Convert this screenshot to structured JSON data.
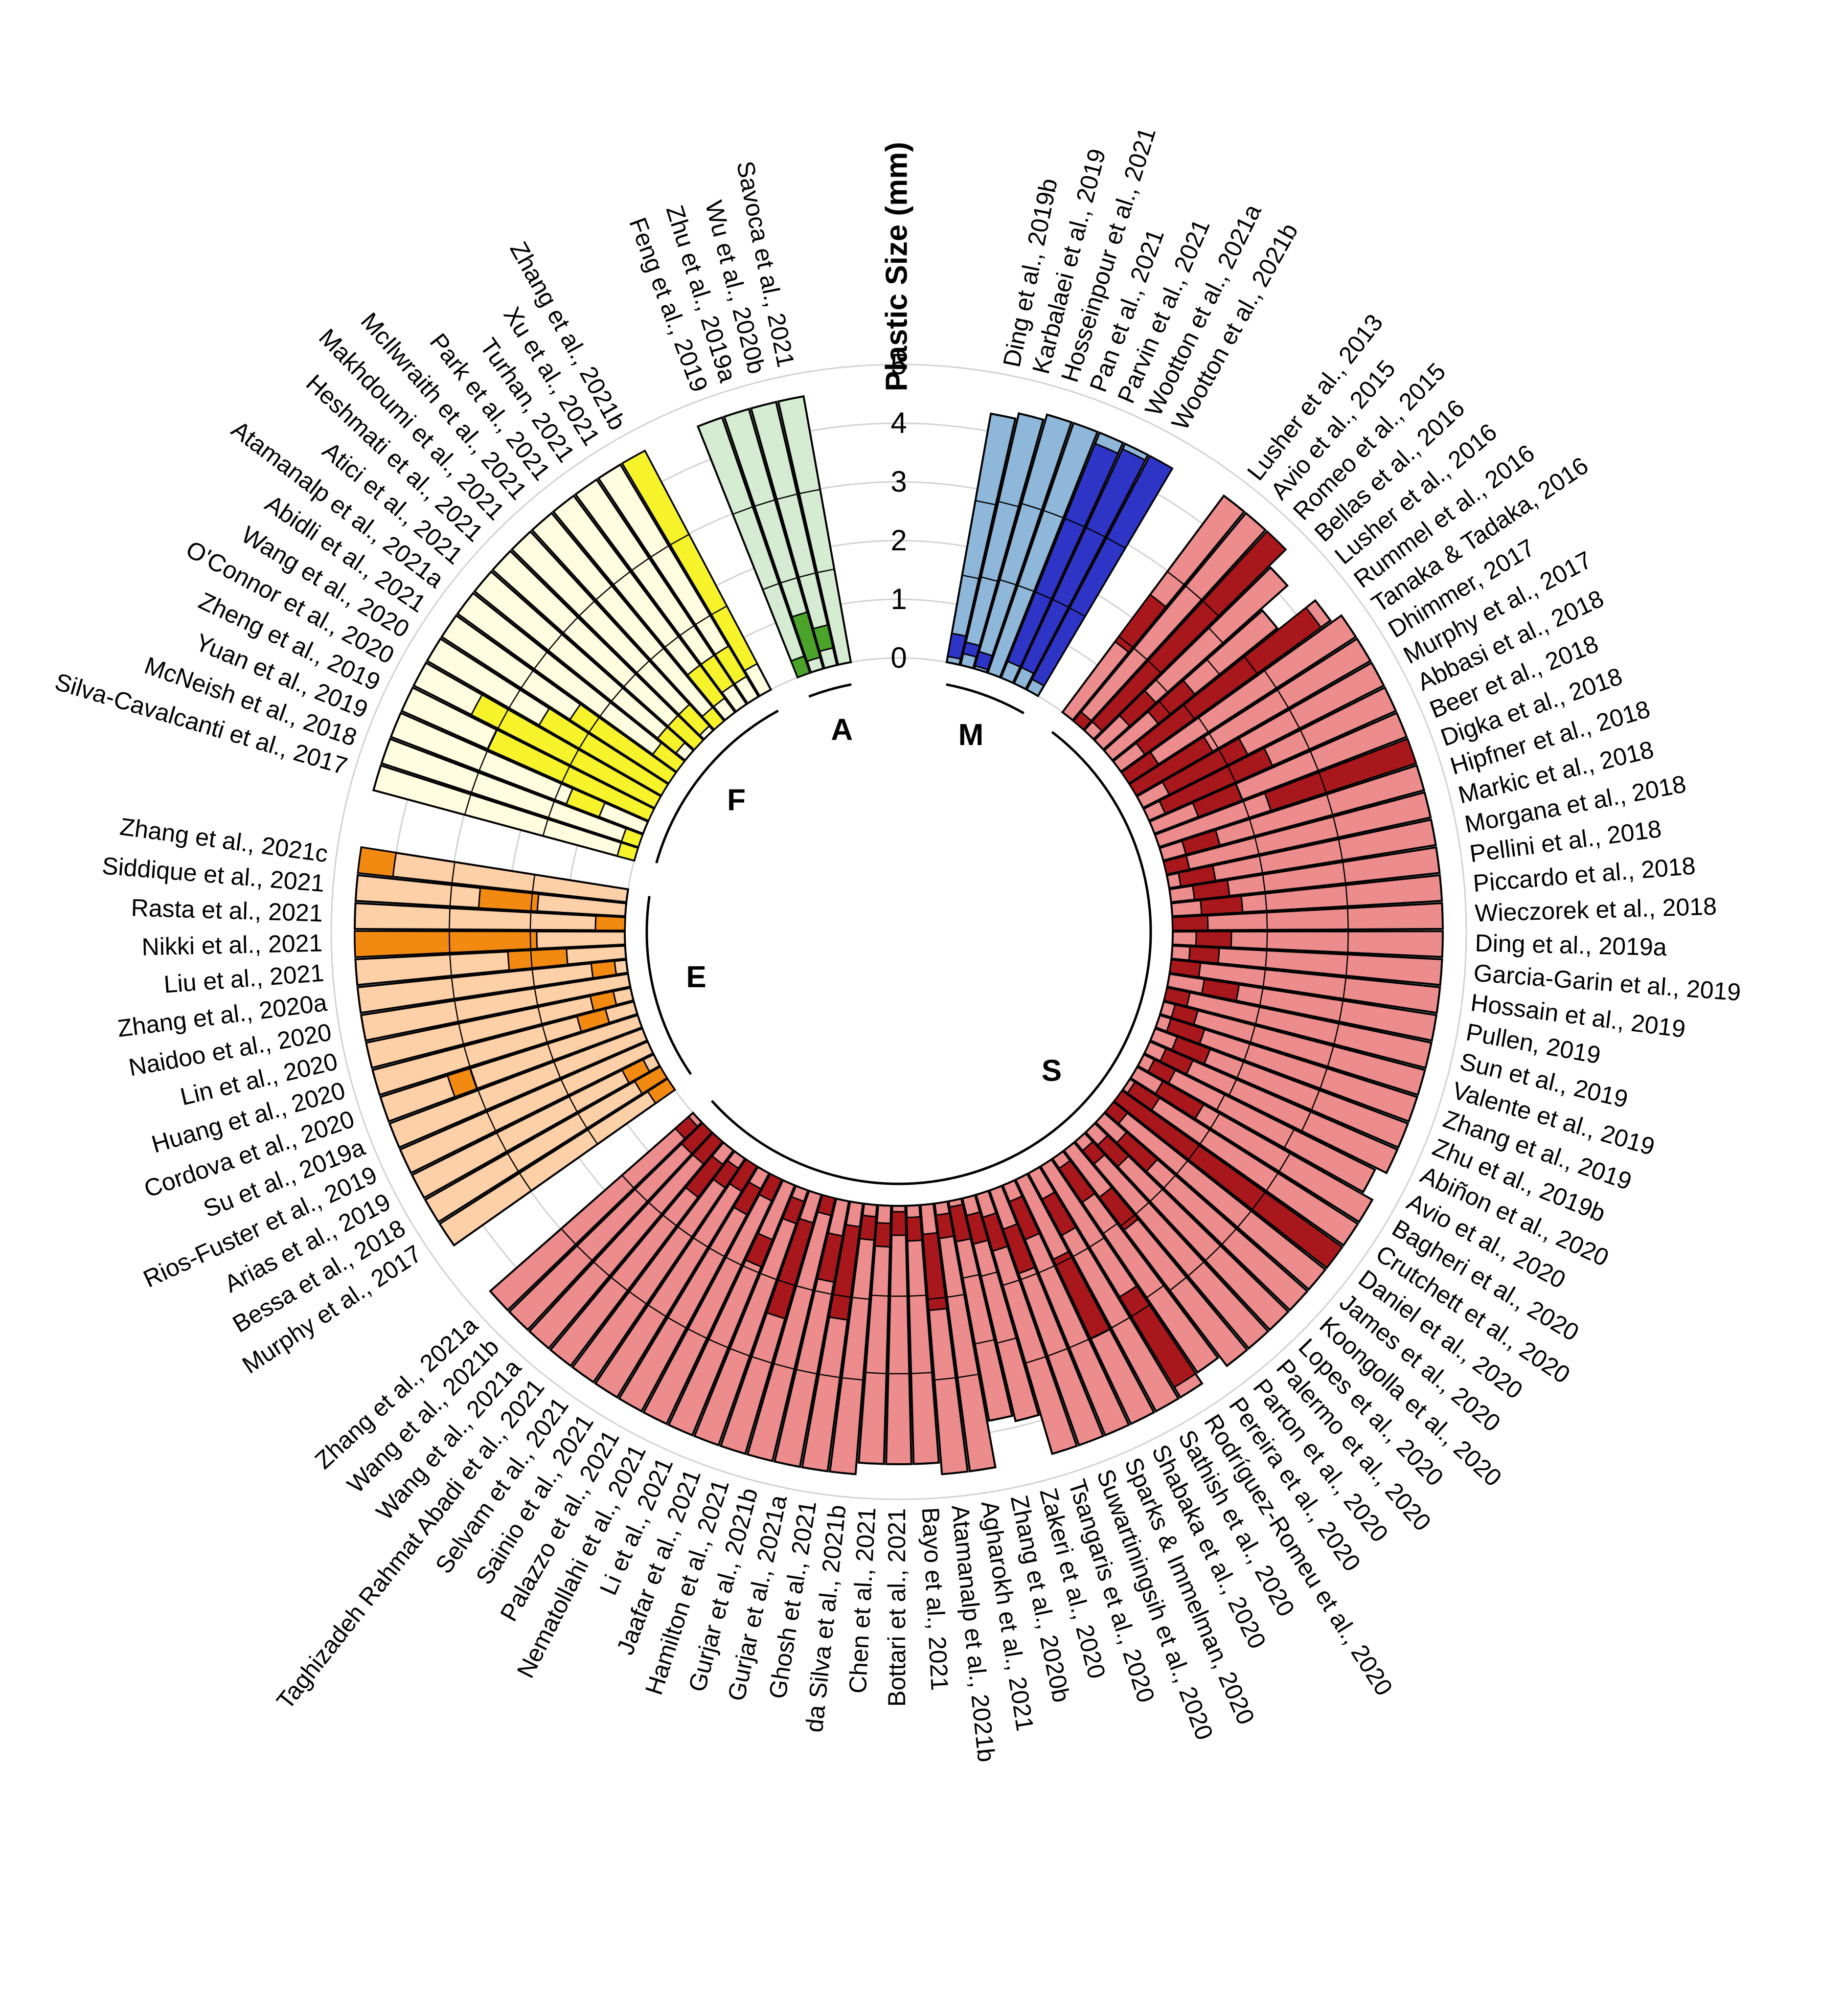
{
  "chart_data": {
    "type": "circular-stacked-bar",
    "axis_title": "Plastic Size (mm)",
    "radial_ticks": [
      "0",
      "1",
      "2",
      "3",
      "4",
      "5"
    ],
    "ylim": [
      0,
      5
    ],
    "groups": [
      {
        "key": "M",
        "label": "M",
        "color_light": "#8fb7d9",
        "color_dark": "#2e34c6",
        "studies": [
          "Ding et al., 2019b",
          "Karbalaei et al., 2019",
          "Hosseinpour et al., 2021",
          "Pan et al., 2021",
          "Parvin et al., 2021",
          "Wootton et al., 2021a",
          "Wootton et al., 2021b"
        ],
        "lengths": [
          4.3,
          4.4,
          4.5,
          4.5,
          4.5,
          4.5,
          4.5
        ],
        "dark": [
          [
            0.1,
            0.5
          ],
          [
            0.2,
            0.4
          ],
          [
            0.05,
            0.3
          ],
          [
            0,
            0
          ],
          [
            0.3,
            4.3
          ],
          [
            0.3,
            4.4
          ],
          [
            0.2,
            4.5
          ]
        ]
      },
      {
        "key": "S",
        "label": "S",
        "color_light": "#ec8c8c",
        "color_dark": "#a8171b",
        "studies": [
          "Lusher et al., 2013",
          "Avio et al., 2015",
          "Romeo et al., 2015",
          "Bellas et al., 2016",
          "Lusher et al., 2016",
          "Rummel et al., 2016",
          "Tanaka & Tadaka, 2016",
          "Dhimmer, 2017",
          "Murphy et al., 2017",
          "Abbasi et al., 2018",
          "Beer et al., 2018",
          "Digka et al., 2018",
          "Hipfner et al., 2018",
          "Markic et al., 2018",
          "Morgana et al., 2018",
          "Pellini et al., 2018",
          "Piccardo et al., 2018",
          "Wieczorek et al., 2018",
          "Ding et al., 2019a",
          "Garcia-Garin et al., 2019",
          "Hossain et al., 2019",
          "Pullen, 2019",
          "Sun et al., 2019",
          "Valente et al., 2019",
          "Zhang et al., 2019",
          "Zhu et al., 2019b",
          "Abiñon et al., 2020",
          "Avio et al., 2020",
          "Bagheri et al., 2020",
          "Crutchett et al., 2020",
          "Daniel et al., 2020",
          "James et al., 2020",
          "Koongolla et al., 2020",
          "Lopes et al., 2020",
          "Palermo et al., 2020",
          "Parton et al., 2020",
          "Pereira et al., 2020",
          "Rodríguez-Romeu et al., 2020",
          "Sathish et al., 2020",
          "Shabaka et al., 2020",
          "Sparks & Immelman, 2020",
          "Suwartiningsih et al., 2020",
          "Tsangaris et al., 2020",
          "Zakeri et al., 2020",
          "Zhang et al., 2020b",
          "Agharokh et al., 2021",
          "Atamanalp et al., 2021b",
          "Bayo et al., 2021",
          "Bottari et al., 2021",
          "Chen et al., 2021",
          "da Silva et al., 2021b",
          "Ghosh et al., 2021",
          "Gurjar et al., 2021a",
          "Gurjar et al., 2021b",
          "Hamilton et al., 2021",
          "Jaafar et al., 2021",
          "Li et al., 2021",
          "Nematollahi et al., 2021",
          "Palazzo et al., 2021",
          "Sainio et al., 2021",
          "Selvam et al., 2021",
          "Taghizadeh Rahmat Abadi et al., 2021",
          "Wang et al., 2021a",
          "Wang et al., 2021b",
          "Zhang et al., 2021a"
        ],
        "lengths": [
          4.6,
          4.6,
          4.6,
          4.2,
          3.6,
          4.4,
          4.6,
          4.6,
          4.6,
          4.6,
          4.6,
          4.6,
          4.6,
          4.6,
          4.6,
          4.6,
          4.6,
          4.6,
          4.6,
          4.6,
          4.6,
          4.6,
          4.6,
          4.6,
          4.6,
          4.6,
          4.6,
          4.4,
          4.6,
          4.6,
          4.6,
          4.6,
          4.6,
          4.6,
          4.6,
          4.6,
          4.4,
          4.6,
          4.6,
          4.6,
          4.6,
          4.6,
          4.6,
          3.9,
          3.8,
          4.6,
          4.6,
          4.4,
          4.4,
          4.4,
          4.6,
          4.6,
          4.6,
          4.6,
          4.6,
          4.6,
          4.6,
          4.6,
          4.6,
          4.6,
          4.6,
          4.6,
          4.6,
          4.6,
          4.6
        ],
        "dark": [
          [
            1.5,
            2.5
          ],
          [
            0,
            0.2
          ],
          [
            0.2,
            4.6
          ],
          [
            0.6,
            1.2
          ],
          [
            1.0,
            1.8
          ],
          [
            0.5,
            4.2
          ],
          [
            0,
            0.6
          ],
          [
            0,
            1.5
          ],
          [
            0.5,
            2.0
          ],
          [
            0.3,
            2.3
          ],
          [
            0.8,
            1.6
          ],
          [
            2.0,
            4.6
          ],
          [
            0.4,
            1.0
          ],
          [
            0,
            0.4
          ],
          [
            0.2,
            0.8
          ],
          [
            0.4,
            1.0
          ],
          [
            0.5,
            1.2
          ],
          [
            0,
            0.6
          ],
          [
            0.4,
            1.0
          ],
          [
            0.3,
            0.8
          ],
          [
            0,
            0.5
          ],
          [
            0.6,
            1.2
          ],
          [
            0,
            0.4
          ],
          [
            0.2,
            0.6
          ],
          [
            0.2,
            0.8
          ],
          [
            0.4,
            1.0
          ],
          [
            0.3,
            0.8
          ],
          [
            0.2,
            0.6
          ],
          [
            0.5,
            1.3
          ],
          [
            0.1,
            0.6
          ],
          [
            0,
            4.6
          ],
          [
            0,
            0.3
          ],
          [
            0.5,
            1.2
          ],
          [
            0.3,
            0.8
          ],
          [
            0.2,
            0.5
          ],
          [
            1.0,
            1.7
          ],
          [
            0.2,
            0.9
          ],
          [
            2.6,
            4.4
          ],
          [
            0.5,
            1.2
          ],
          [
            1.5,
            3.0
          ],
          [
            0.3,
            1.0
          ],
          [
            0.7,
            1.5
          ],
          [
            0.4,
            1.0
          ],
          [
            0.3,
            0.8
          ],
          [
            0.1,
            0.7
          ],
          [
            0.2,
            0.6
          ],
          [
            0.5,
            1.8
          ],
          [
            0.2,
            0.6
          ],
          [
            0.1,
            0.5
          ],
          [
            0.3,
            0.7
          ],
          [
            0.2,
            0.6
          ],
          [
            0.4,
            2.0
          ],
          [
            0.6,
            1.4
          ],
          [
            0,
            0.3
          ],
          [
            0.5,
            2.2
          ],
          [
            0.2,
            0.6
          ],
          [
            1.0,
            1.5
          ],
          [
            0,
            0.4
          ],
          [
            0.3,
            0.8
          ],
          [
            0,
            0.5
          ],
          [
            0.2,
            0.6
          ],
          [
            0.3,
            1.0
          ],
          [
            0,
            0.5
          ],
          [
            0,
            0.5
          ],
          [
            0.1,
            0.4
          ]
        ]
      },
      {
        "key": "E",
        "label": "E",
        "color_light": "#fdd0a8",
        "color_dark": "#f28a12",
        "studies": [
          "Murphy et al., 2017",
          "Bessa et al., 2018",
          "Arias et al., 2019",
          "Rios-Fuster et al., 2019",
          "Su et al., 2019a",
          "Cordova et al., 2020",
          "Huang et al., 2020",
          "Lin et al., 2020",
          "Naidoo et al., 2020",
          "Zhang et al., 2020a",
          "Liu et al., 2021",
          "Nikki et al., 2021",
          "Rasta et al., 2021",
          "Siddique et al., 2021",
          "Zhang et al., 2021c"
        ],
        "lengths": [
          4.6,
          4.6,
          4.6,
          4.6,
          4.6,
          4.6,
          4.6,
          4.6,
          4.6,
          4.6,
          4.6,
          4.6,
          4.6,
          4.6,
          4.6
        ],
        "dark": [
          [
            0,
            0.4
          ],
          [
            0,
            0.5
          ],
          [
            0.2,
            0.6
          ],
          [
            0,
            0
          ],
          [
            0,
            0
          ],
          [
            3.0,
            3.4
          ],
          [
            0.5,
            1.0
          ],
          [
            0.3,
            0.7
          ],
          [
            0,
            0
          ],
          [
            0.2,
            0.6
          ],
          [
            1.0,
            2.0
          ],
          [
            1.5,
            4.6
          ],
          [
            0,
            0.5
          ],
          [
            1.5,
            2.5
          ],
          [
            4.0,
            4.6
          ]
        ]
      },
      {
        "key": "F",
        "label": "F",
        "color_light": "#fffde0",
        "color_dark": "#f7f32a",
        "studies": [
          "Silva-Cavalcanti et al., 2017",
          "McNeish et al., 2018",
          "Yuan et al., 2019",
          "Zheng et al., 2019",
          "O'Connor et al., 2020",
          "Wang et al., 2020",
          "Abidli et al., 2021",
          "Atamanalp et al., 2021a",
          "Atici et al., 2021",
          "Heshmati et al., 2021",
          "Makhdoumi et al., 2021",
          "McIlwraith et al., 2021",
          "Park et al., 2021",
          "Turhan, 2021",
          "Xu et al., 2021",
          "Zhang et al., 2021b"
        ],
        "lengths": [
          4.6,
          4.6,
          4.6,
          4.6,
          4.6,
          4.6,
          4.6,
          4.6,
          4.6,
          4.6,
          4.6,
          4.6,
          4.6,
          4.6,
          4.6,
          4.6
        ],
        "dark": [
          [
            0,
            0.3
          ],
          [
            0,
            0.3
          ],
          [
            0.8,
            1.4
          ],
          [
            0,
            3.0
          ],
          [
            0,
            3.5
          ],
          [
            0,
            2.4
          ],
          [
            0,
            2.0
          ],
          [
            0,
            0.5
          ],
          [
            0.2,
            0.6
          ],
          [
            0,
            0.6
          ],
          [
            0.1,
            0.6
          ],
          [
            0,
            0.3
          ],
          [
            0.3,
            1.0
          ],
          [
            0.4,
            1.0
          ],
          [
            0.4,
            1.0
          ],
          [
            0.5,
            4.6
          ]
        ]
      },
      {
        "key": "A",
        "label": "A",
        "color_light": "#d6ecd2",
        "color_dark": "#4aa42a",
        "studies": [
          "Feng et al., 2019",
          "Zhu et al., 2019a",
          "Wu et al., 2020b",
          "Savoca et al., 2021"
        ],
        "lengths": [
          4.6,
          4.6,
          4.6,
          4.6
        ],
        "dark": [
          [
            0,
            0.3
          ],
          [
            0.2,
            1.0
          ],
          [
            0.3,
            0.7
          ],
          [
            0,
            0
          ]
        ]
      }
    ]
  }
}
